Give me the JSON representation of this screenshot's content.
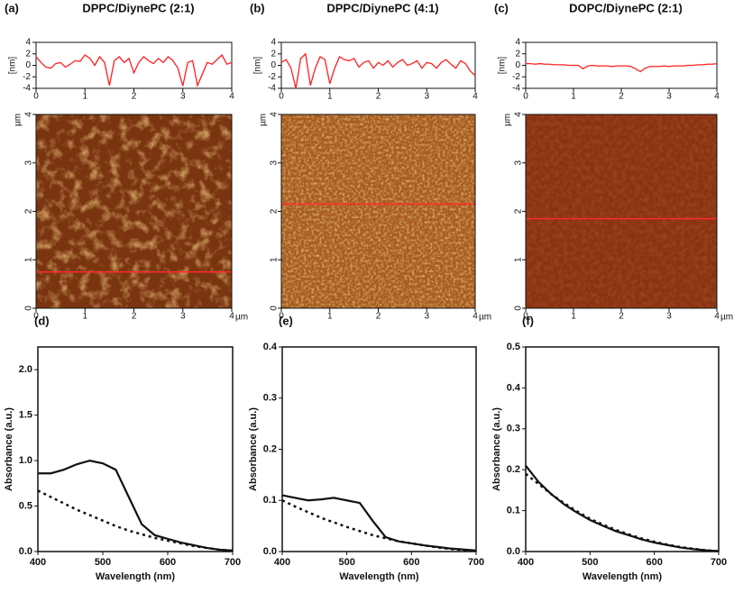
{
  "chart_data": [
    {
      "type": "profile",
      "label": "(a)",
      "title": "DPPC/DiynePC (2:1)",
      "ylabel": "[nm]",
      "x": [
        0,
        0.1,
        0.2,
        0.3,
        0.4,
        0.5,
        0.6,
        0.7,
        0.8,
        0.9,
        1,
        1.1,
        1.2,
        1.3,
        1.4,
        1.5,
        1.6,
        1.7,
        1.8,
        1.9,
        2,
        2.1,
        2.2,
        2.3,
        2.4,
        2.5,
        2.6,
        2.7,
        2.8,
        2.9,
        3,
        3.1,
        3.2,
        3.3,
        3.4,
        3.5,
        3.6,
        3.7,
        3.8,
        3.9,
        4
      ],
      "series": [
        {
          "color": "#ff2020",
          "values": [
            1.5,
            0.5,
            -0.3,
            -0.5,
            0.3,
            0.5,
            -0.3,
            0.2,
            0.8,
            0.7,
            1.8,
            1.2,
            0,
            1.5,
            0.5,
            -3.5,
            0.8,
            1.5,
            0.5,
            1.2,
            -1.3,
            0.5,
            1.5,
            0.8,
            0.3,
            1.2,
            0.5,
            1.5,
            0.8,
            -0.5,
            -3.6,
            0.5,
            0.8,
            -3.5,
            -1.5,
            0.5,
            0.2,
            1,
            1.8,
            0.2,
            0.5
          ]
        }
      ],
      "xlim": [
        0,
        4
      ],
      "xticks": [
        0,
        1,
        2,
        3,
        4
      ],
      "ylim": [
        -4,
        4
      ],
      "yticks": [
        -4,
        -2,
        0,
        2,
        4
      ]
    },
    {
      "type": "profile",
      "label": "(b)",
      "title": "DPPC/DiynePC (4:1)",
      "ylabel": "[nm]",
      "x": [
        0,
        0.1,
        0.2,
        0.3,
        0.4,
        0.5,
        0.6,
        0.7,
        0.8,
        0.9,
        1,
        1.1,
        1.2,
        1.3,
        1.4,
        1.5,
        1.6,
        1.7,
        1.8,
        1.9,
        2,
        2.1,
        2.2,
        2.3,
        2.4,
        2.5,
        2.6,
        2.7,
        2.8,
        2.9,
        3,
        3.1,
        3.2,
        3.3,
        3.4,
        3.5,
        3.6,
        3.7,
        3.8,
        3.9,
        4
      ],
      "series": [
        {
          "color": "#ff2020",
          "values": [
            0.5,
            1,
            -0.5,
            -4,
            1.2,
            2,
            -3.5,
            -0.5,
            1.5,
            1,
            -3.2,
            -0.5,
            1.5,
            1,
            0.8,
            1.2,
            -0.3,
            0.5,
            0.8,
            -0.5,
            0.5,
            0,
            0.8,
            -0.3,
            0.5,
            1,
            0,
            0.3,
            0.8,
            -0.5,
            0.5,
            0.3,
            -0.5,
            0.5,
            1,
            0.2,
            -0.5,
            0.8,
            0.3,
            -1,
            -1.8
          ]
        }
      ],
      "xlim": [
        0,
        4
      ],
      "xticks": [
        0,
        1,
        2,
        3,
        4
      ],
      "ylim": [
        -4,
        4
      ],
      "yticks": [
        -4,
        -2,
        0,
        2,
        4
      ]
    },
    {
      "type": "profile",
      "label": "(c)",
      "title": "DOPC/DiynePC (2:1)",
      "ylabel": "[nm]",
      "x": [
        0,
        0.1,
        0.2,
        0.3,
        0.4,
        0.5,
        0.6,
        0.7,
        0.8,
        0.9,
        1,
        1.1,
        1.2,
        1.3,
        1.4,
        1.5,
        1.6,
        1.7,
        1.8,
        1.9,
        2,
        2.1,
        2.2,
        2.3,
        2.4,
        2.5,
        2.6,
        2.7,
        2.8,
        2.9,
        3,
        3.1,
        3.2,
        3.3,
        3.4,
        3.5,
        3.6,
        3.7,
        3.8,
        3.9,
        4
      ],
      "series": [
        {
          "color": "#ff2020",
          "values": [
            0.3,
            0.3,
            0.2,
            0.3,
            0.2,
            0.2,
            0.1,
            0.1,
            0.1,
            0,
            0,
            0,
            -0.6,
            -0.1,
            0,
            -0.1,
            -0.1,
            -0.1,
            -0.2,
            -0.1,
            -0.1,
            -0.1,
            -0.2,
            -0.6,
            -1.1,
            -0.5,
            -0.2,
            -0.2,
            -0.2,
            -0.1,
            -0.2,
            -0.1,
            -0.1,
            -0.1,
            0,
            0,
            0.1,
            0.1,
            0.2,
            0.2,
            0.3
          ]
        }
      ],
      "xlim": [
        0,
        4
      ],
      "xticks": [
        0,
        1,
        2,
        3,
        4
      ],
      "ylim": [
        -4,
        4
      ],
      "yticks": [
        -4,
        -2,
        0,
        2,
        4
      ]
    },
    {
      "type": "image",
      "unit": "µm",
      "color": "#7a3510",
      "scan_line": 0.75,
      "scan_color": "#ff2a2a",
      "xlim": [
        0,
        4
      ],
      "xticks": [
        0,
        1,
        2,
        3,
        4
      ],
      "ylim": [
        0,
        4
      ],
      "yticks": [
        0,
        1,
        2,
        3,
        4
      ]
    },
    {
      "type": "image",
      "unit": "µm",
      "color": "#a85c1e",
      "scan_line": 2.15,
      "scan_color": "#ff2a2a",
      "xlim": [
        0,
        4
      ],
      "xticks": [
        0,
        1,
        2,
        3,
        4
      ],
      "ylim": [
        0,
        4
      ],
      "yticks": [
        0,
        1,
        2,
        3,
        4
      ]
    },
    {
      "type": "image",
      "unit": "µm",
      "color": "#8a3312",
      "scan_line": 1.85,
      "scan_color": "#ff2a2a",
      "xlim": [
        0,
        4
      ],
      "xticks": [
        0,
        1,
        2,
        3,
        4
      ],
      "ylim": [
        0,
        4
      ],
      "yticks": [
        0,
        1,
        2,
        3,
        4
      ]
    },
    {
      "type": "line",
      "label": "(d)",
      "xlabel": "Wavelength (nm)",
      "ylabel": "Absorbance (a.u.)",
      "x": [
        400,
        420,
        440,
        460,
        480,
        500,
        520,
        540,
        560,
        580,
        600,
        620,
        640,
        660,
        680,
        700
      ],
      "series": [
        {
          "color": "#111111",
          "style": "solid",
          "values": [
            0.86,
            0.86,
            0.9,
            0.96,
            1.0,
            0.97,
            0.9,
            0.6,
            0.3,
            0.18,
            0.14,
            0.1,
            0.07,
            0.04,
            0.02,
            0.01
          ]
        },
        {
          "color": "#111111",
          "style": "dotted",
          "values": [
            0.67,
            0.6,
            0.53,
            0.46,
            0.4,
            0.34,
            0.28,
            0.23,
            0.19,
            0.15,
            0.12,
            0.09,
            0.06,
            0.04,
            0.02,
            0.01
          ]
        }
      ],
      "xlim": [
        400,
        700
      ],
      "xticks": [
        400,
        500,
        600,
        700
      ],
      "ylim": [
        0,
        2.25
      ],
      "yticks": [
        {
          "value": 0,
          "label": "0.0"
        },
        0.5,
        {
          "value": 1,
          "label": "1.0"
        },
        1.5,
        {
          "value": 2,
          "label": "2.0"
        }
      ]
    },
    {
      "type": "line",
      "label": "(e)",
      "xlabel": "Wavelength (nm)",
      "ylabel": "Absorbance (a.u.)",
      "x": [
        400,
        420,
        440,
        460,
        480,
        500,
        520,
        540,
        560,
        580,
        600,
        620,
        640,
        660,
        680,
        700
      ],
      "series": [
        {
          "color": "#111111",
          "style": "solid",
          "values": [
            0.11,
            0.105,
            0.1,
            0.102,
            0.105,
            0.1,
            0.095,
            0.06,
            0.028,
            0.02,
            0.016,
            0.012,
            0.009,
            0.006,
            0.004,
            0.002
          ]
        },
        {
          "color": "#111111",
          "style": "dotted",
          "values": [
            0.1,
            0.088,
            0.077,
            0.066,
            0.057,
            0.048,
            0.04,
            0.032,
            0.026,
            0.02,
            0.016,
            0.012,
            0.008,
            0.005,
            0.003,
            0.002
          ]
        }
      ],
      "xlim": [
        400,
        700
      ],
      "xticks": [
        400,
        500,
        600,
        700
      ],
      "ylim": [
        0,
        0.4
      ],
      "yticks": [
        {
          "value": 0,
          "label": "0.0"
        },
        0.1,
        0.2,
        0.3,
        0.4
      ]
    },
    {
      "type": "line",
      "label": "(f)",
      "xlabel": "Wavelength (nm)",
      "ylabel": "Absorbance (a.u.)",
      "x": [
        400,
        420,
        440,
        460,
        480,
        500,
        520,
        540,
        560,
        580,
        600,
        620,
        640,
        660,
        680,
        700
      ],
      "series": [
        {
          "color": "#111111",
          "style": "solid",
          "values": [
            0.21,
            0.17,
            0.14,
            0.115,
            0.095,
            0.077,
            0.063,
            0.05,
            0.04,
            0.03,
            0.022,
            0.016,
            0.01,
            0.006,
            0.003,
            0.001
          ]
        },
        {
          "color": "#111111",
          "style": "dotted",
          "values": [
            0.19,
            0.165,
            0.14,
            0.118,
            0.098,
            0.08,
            0.066,
            0.053,
            0.042,
            0.032,
            0.024,
            0.017,
            0.011,
            0.007,
            0.003,
            0.001
          ]
        }
      ],
      "xlim": [
        400,
        700
      ],
      "xticks": [
        400,
        500,
        600,
        700
      ],
      "ylim": [
        0,
        0.5
      ],
      "yticks": [
        {
          "value": 0,
          "label": "0.0"
        },
        0.1,
        0.2,
        0.3,
        0.4,
        0.5
      ]
    }
  ]
}
